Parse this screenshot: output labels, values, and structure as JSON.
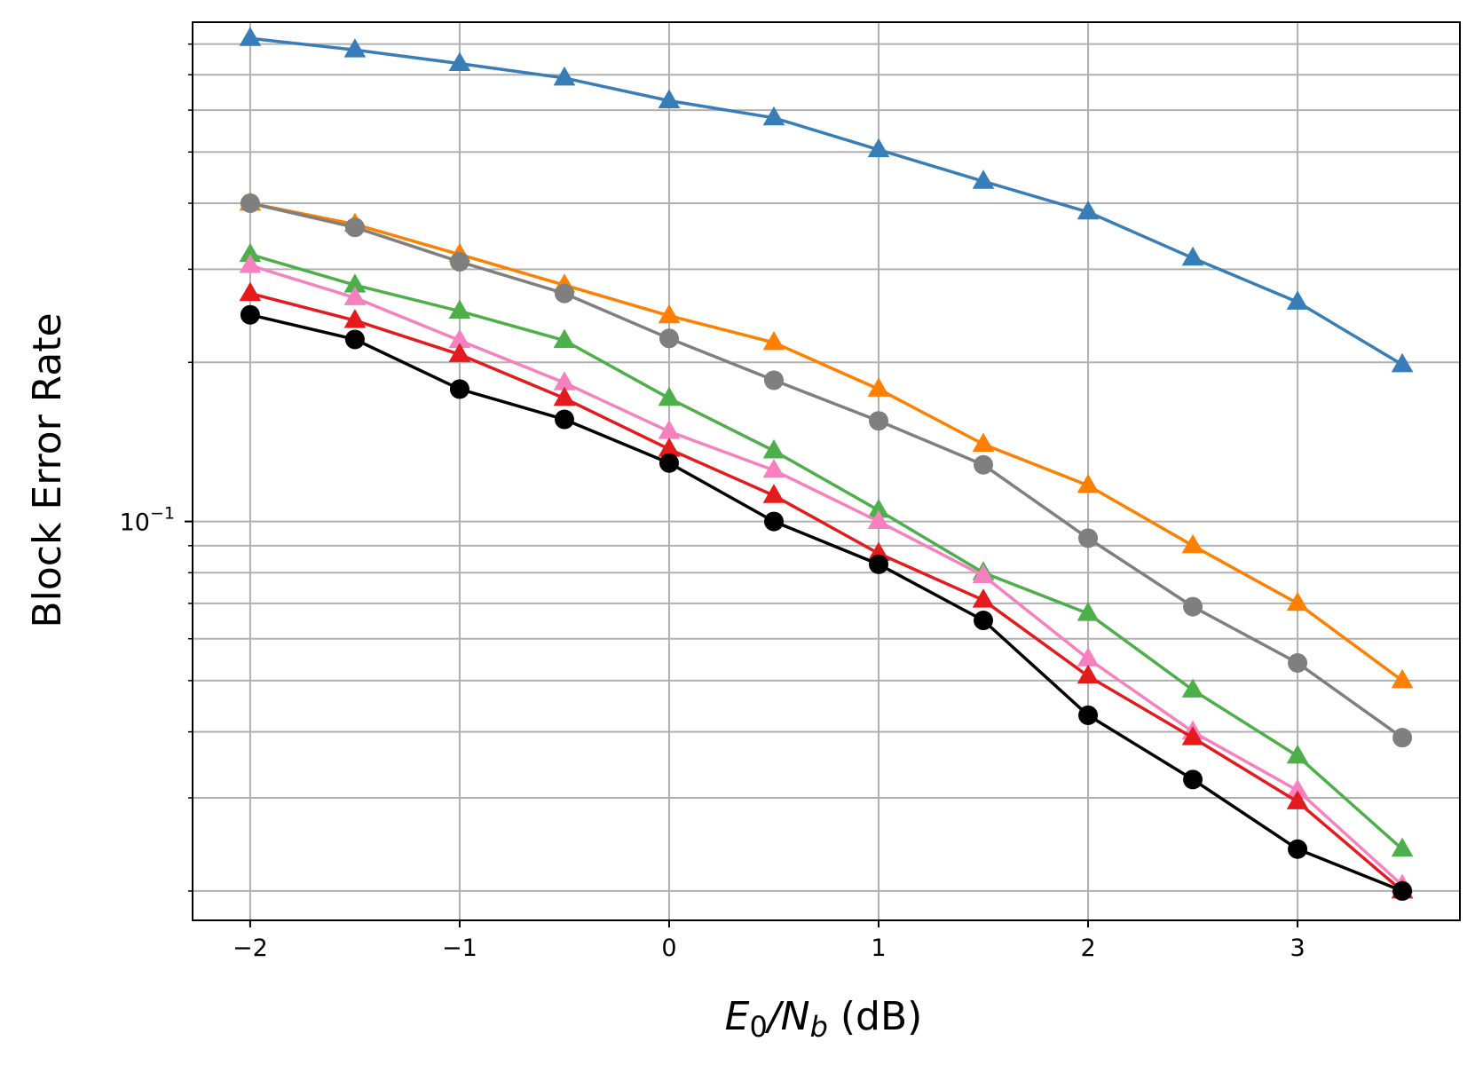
{
  "chart_data": {
    "type": "line",
    "xlabel": "",
    "xlabel_parts": {
      "e": "E",
      "e_sub": "0",
      "slash": "/N",
      "n_sub": "b",
      "unit": " (dB)"
    },
    "ylabel": "Block Error Rate",
    "xlim": [
      -2.275,
      3.775
    ],
    "ylim": [
      0.0176,
      0.88
    ],
    "yscale": "log",
    "grid": true,
    "x_ticks": [
      -2,
      -1,
      0,
      1,
      2,
      3
    ],
    "x_tick_labels": [
      "−2",
      "−1",
      "0",
      "1",
      "2",
      "3"
    ],
    "y_major_tick": {
      "value": 0.1,
      "base": "10",
      "exp": "−1"
    },
    "y_minor_ticks": [
      0.02,
      0.03,
      0.04,
      0.05,
      0.06,
      0.07,
      0.08,
      0.09,
      0.2,
      0.3,
      0.4,
      0.5,
      0.6,
      0.7,
      0.8
    ],
    "x": [
      -2,
      -1.5,
      -1,
      -0.5,
      0,
      0.5,
      1,
      1.5,
      2,
      2.5,
      3,
      3.5
    ],
    "series": [
      {
        "color": "#377eb8",
        "marker": "triangle",
        "values": [
          0.82,
          0.78,
          0.735,
          0.69,
          0.625,
          0.58,
          0.505,
          0.44,
          0.385,
          0.315,
          0.26,
          0.198
        ]
      },
      {
        "color": "#ff7f00",
        "marker": "triangle",
        "values": [
          0.4,
          0.365,
          0.32,
          0.28,
          0.245,
          0.218,
          0.178,
          0.14,
          0.117,
          0.09,
          0.07,
          0.05
        ]
      },
      {
        "color": "#7f7f7f",
        "marker": "circle",
        "values": [
          0.4,
          0.36,
          0.31,
          0.27,
          0.222,
          0.185,
          0.155,
          0.128,
          0.093,
          0.069,
          0.054,
          0.039
        ]
      },
      {
        "color": "#4daf4a",
        "marker": "triangle",
        "values": [
          0.32,
          0.28,
          0.25,
          0.22,
          0.171,
          0.136,
          0.105,
          0.08,
          0.067,
          0.048,
          0.036,
          0.024
        ]
      },
      {
        "color": "#f781bf",
        "marker": "triangle",
        "values": [
          0.305,
          0.265,
          0.22,
          0.183,
          0.148,
          0.125,
          0.1,
          0.079,
          0.055,
          0.04,
          0.031,
          0.0205
        ]
      },
      {
        "color": "#e41a1c",
        "marker": "triangle",
        "values": [
          0.27,
          0.24,
          0.207,
          0.171,
          0.137,
          0.112,
          0.087,
          0.071,
          0.051,
          0.039,
          0.0295,
          0.02
        ]
      },
      {
        "color": "#000000",
        "marker": "circle",
        "values": [
          0.246,
          0.221,
          0.178,
          0.156,
          0.129,
          0.1,
          0.083,
          0.065,
          0.043,
          0.0325,
          0.024,
          0.02
        ]
      }
    ]
  }
}
